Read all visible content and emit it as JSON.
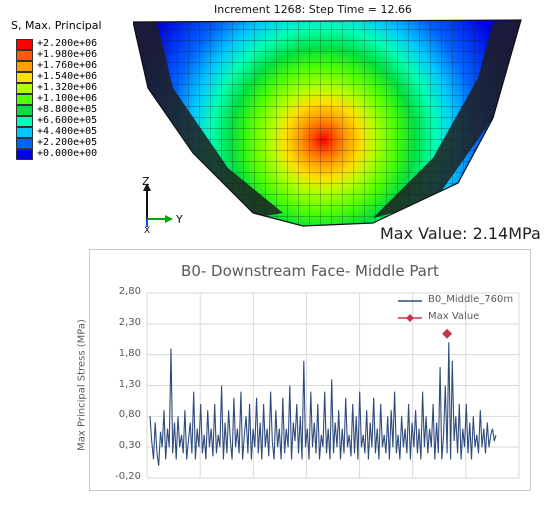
{
  "header": {
    "increment_text": "Increment    1268: Step Time =    12.66"
  },
  "legend": {
    "title": "S, Max. Principal",
    "entries": [
      {
        "label": "+2.200e+06",
        "color": "#ff0000"
      },
      {
        "label": "+1.980e+06",
        "color": "#ff5a00"
      },
      {
        "label": "+1.760e+06",
        "color": "#ffa000"
      },
      {
        "label": "+1.540e+06",
        "color": "#ffe000"
      },
      {
        "label": "+1.320e+06",
        "color": "#b4ff00"
      },
      {
        "label": "+1.100e+06",
        "color": "#50ff00"
      },
      {
        "label": "+8.800e+05",
        "color": "#00e040"
      },
      {
        "label": "+6.600e+05",
        "color": "#00ffb4"
      },
      {
        "label": "+4.400e+05",
        "color": "#00c8ff"
      },
      {
        "label": "+2.200e+05",
        "color": "#0064ff"
      },
      {
        "label": "+0.000e+00",
        "color": "#0000e6"
      }
    ]
  },
  "triad": {
    "z": "Z",
    "y": "Y",
    "x": "X"
  },
  "max_caption": "Max Value: 2.14MPa",
  "chart_data": {
    "type": "line",
    "title": "B0- Downstream Face- Middle Part",
    "ylabel": "Max Principal Stress (MPa)",
    "ylim": [
      -0.2,
      2.8
    ],
    "yticks": [
      "2,80",
      "2,30",
      "1,80",
      "1,30",
      "0,80",
      "0,30",
      "-0,20"
    ],
    "grid": true,
    "legend_position": "top-right",
    "series": [
      {
        "name": "B0_Middle_760m",
        "color": "#2f4b7c",
        "values": [
          0.8,
          0.4,
          0.1,
          0.7,
          0.2,
          0.0,
          0.55,
          0.3,
          0.9,
          0.1,
          0.6,
          0.3,
          1.9,
          0.2,
          0.7,
          0.1,
          0.8,
          0.3,
          0.5,
          0.2,
          0.9,
          0.1,
          0.4,
          0.7,
          0.2,
          1.2,
          0.1,
          0.6,
          0.3,
          1.0,
          0.2,
          0.5,
          0.1,
          0.9,
          0.3,
          0.6,
          0.15,
          1.0,
          0.2,
          0.5,
          0.3,
          1.3,
          0.1,
          0.7,
          0.2,
          0.9,
          0.4,
          0.1,
          1.1,
          0.3,
          0.6,
          0.2,
          1.2,
          0.1,
          0.5,
          0.8,
          0.2,
          1.0,
          0.1,
          0.6,
          0.3,
          1.1,
          0.2,
          0.7,
          0.1,
          1.0,
          0.3,
          0.6,
          0.15,
          1.2,
          0.4,
          0.1,
          0.9,
          0.3,
          0.6,
          0.1,
          1.1,
          0.2,
          0.6,
          0.3,
          1.3,
          0.1,
          0.7,
          0.4,
          1.0,
          0.2,
          0.8,
          0.1,
          1.7,
          0.3,
          0.6,
          0.1,
          1.2,
          0.3,
          0.7,
          0.2,
          1.0,
          0.1,
          0.5,
          0.3,
          1.2,
          0.2,
          0.6,
          0.1,
          1.4,
          0.2,
          0.7,
          0.3,
          0.9,
          0.1,
          0.6,
          0.2,
          1.1,
          0.3,
          0.5,
          0.15,
          1.0,
          0.2,
          0.8,
          0.1,
          1.2,
          0.3,
          0.5,
          0.2,
          0.9,
          0.1,
          0.7,
          0.3,
          1.1,
          0.2,
          0.6,
          0.1,
          1.0,
          0.3,
          0.5,
          0.2,
          0.8,
          0.1,
          0.9,
          0.3,
          1.2,
          0.2,
          0.5,
          0.1,
          0.8,
          0.3,
          0.6,
          0.2,
          1.0,
          0.1,
          0.7,
          0.3,
          0.9,
          0.2,
          0.6,
          0.1,
          1.2,
          0.3,
          0.8,
          0.2,
          0.6,
          0.3,
          1.0,
          0.1,
          0.7,
          0.2,
          1.6,
          0.1,
          0.5,
          1.3,
          0.2,
          2.0,
          0.1,
          1.7,
          0.4,
          0.8,
          0.2,
          1.0,
          0.1,
          0.6,
          0.3,
          1.0,
          0.2,
          0.7,
          0.1,
          0.8,
          0.3,
          0.5,
          0.2,
          0.9,
          0.3,
          0.6,
          0.2,
          0.7,
          0.3,
          0.5,
          0.6,
          0.4,
          0.5
        ]
      },
      {
        "name": "Max Value",
        "color": "#c0394b",
        "x_index": 170,
        "value": 2.14
      }
    ]
  }
}
